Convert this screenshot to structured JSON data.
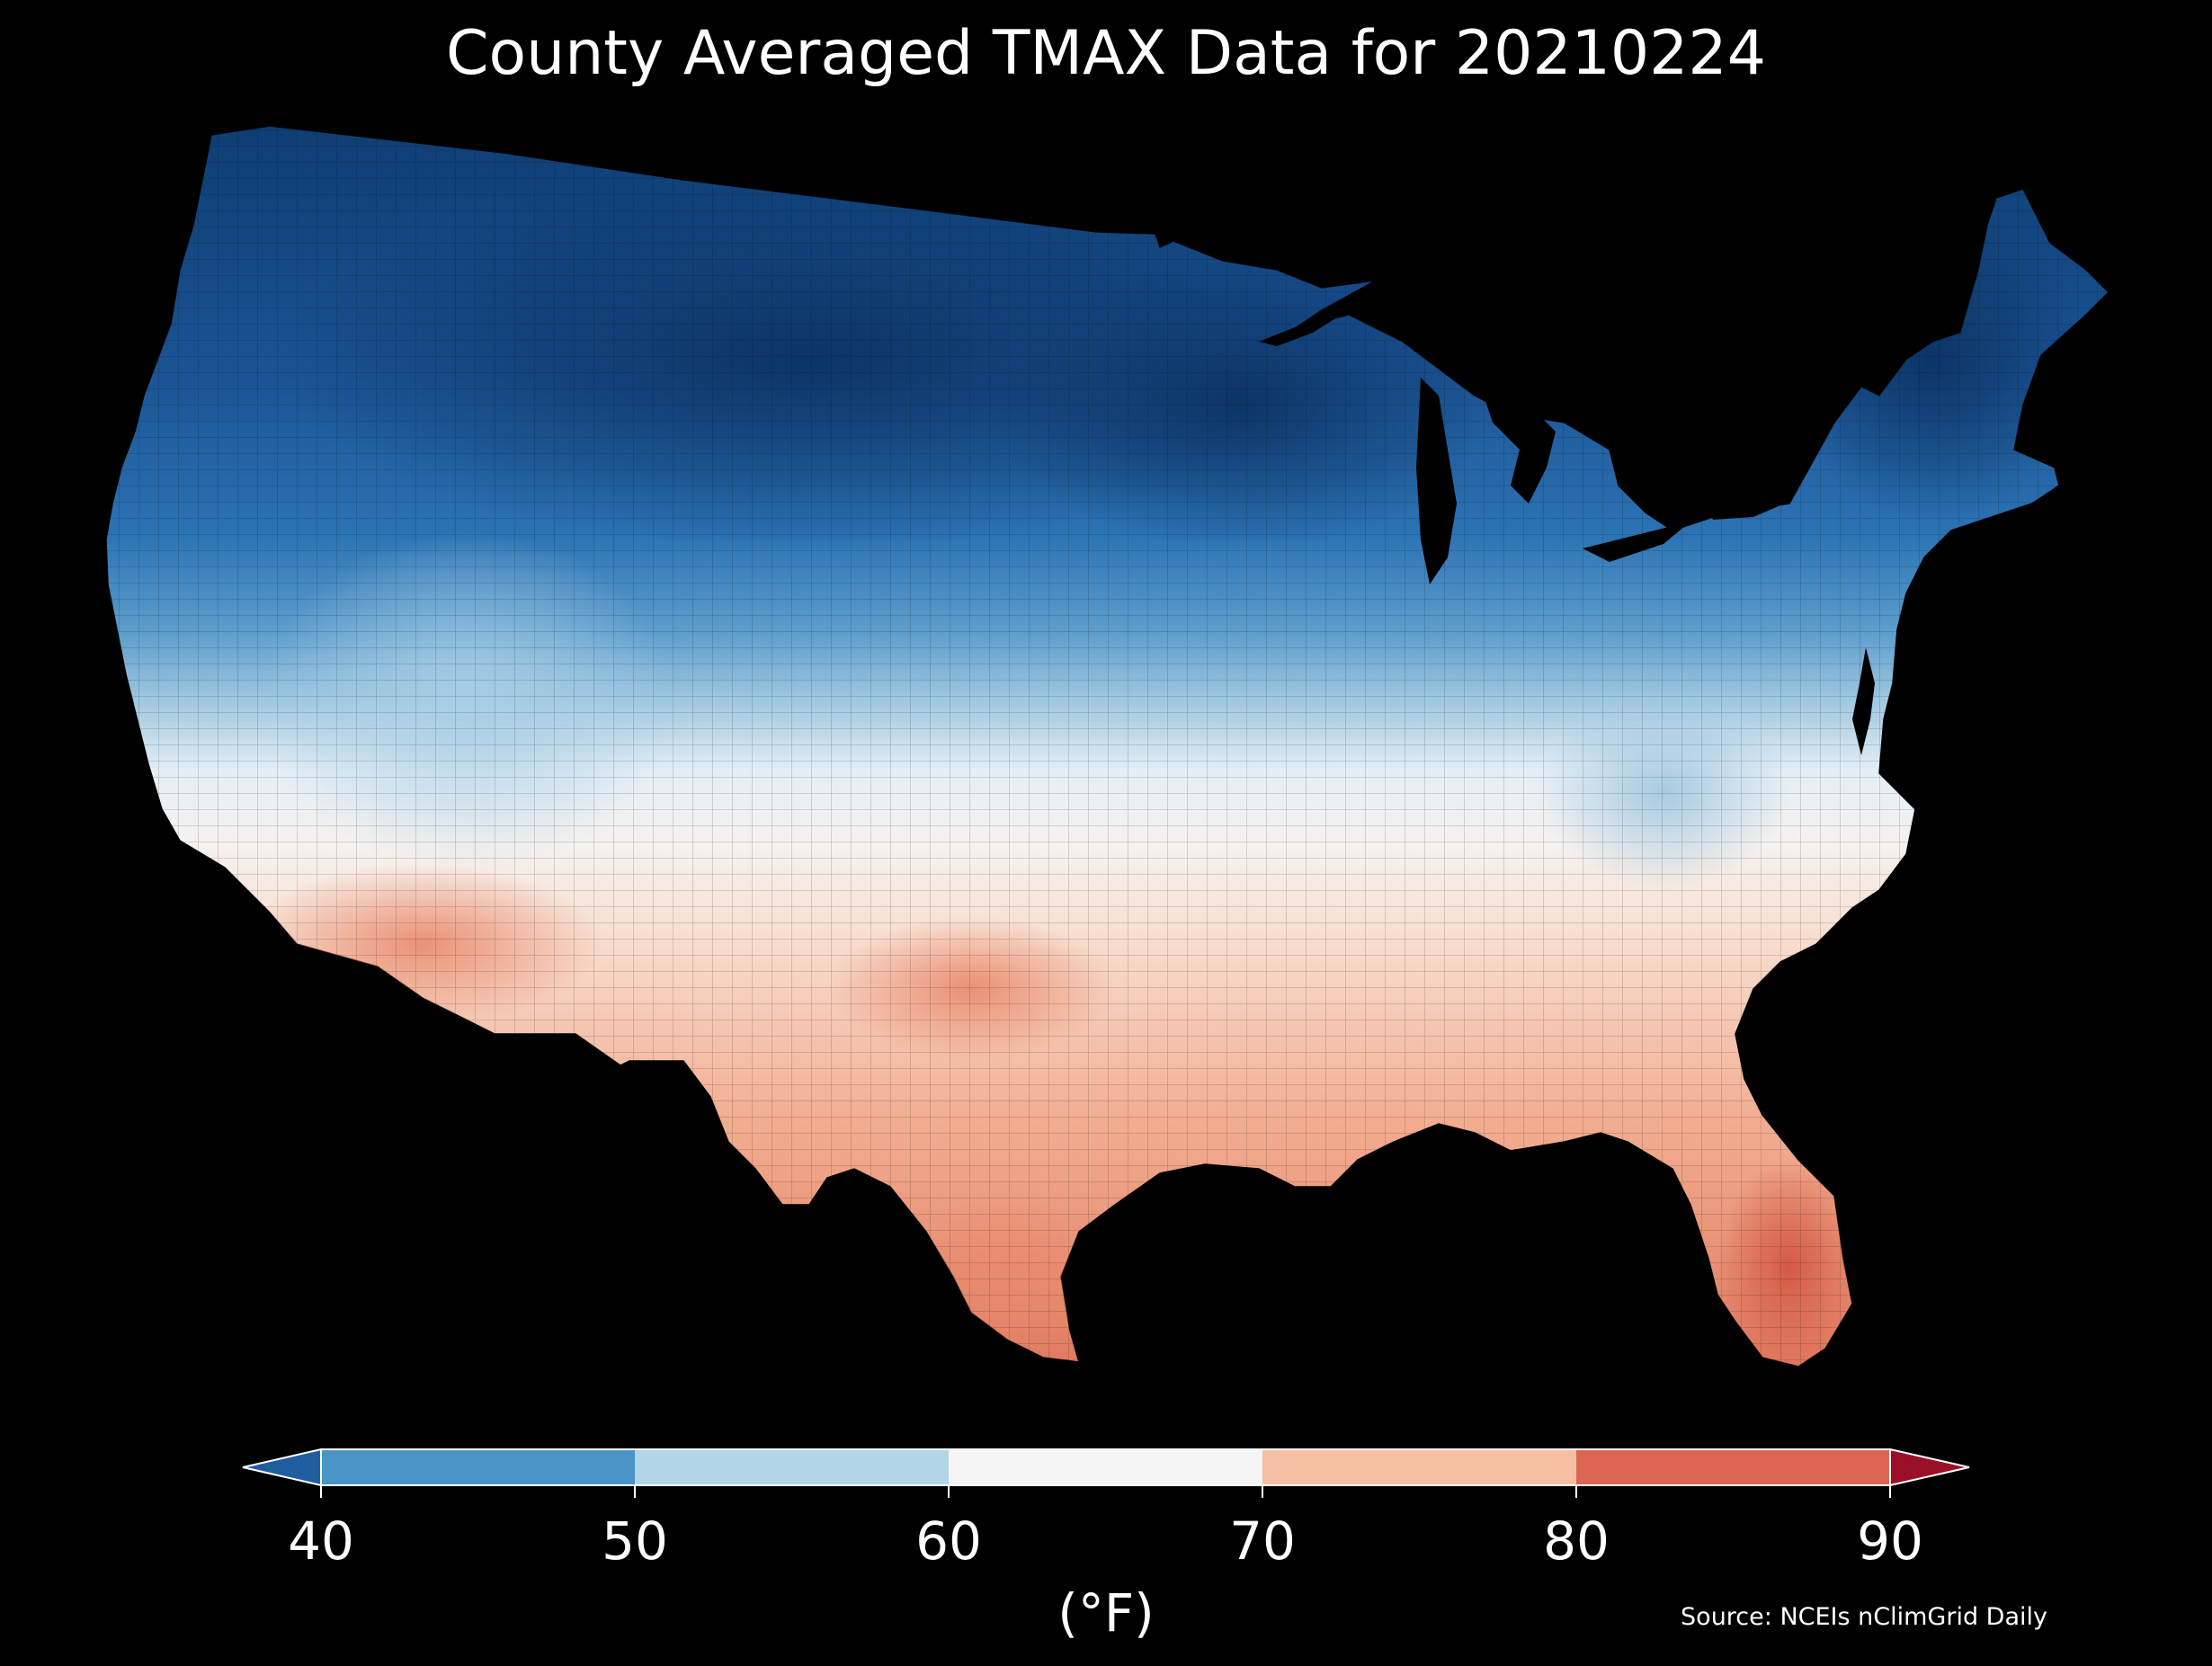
{
  "title": "County Averaged TMAX Data for 20210224",
  "map": {
    "region": "Contiguous United States",
    "units": "°F",
    "variable": "TMAX",
    "date": "20210224",
    "background_color": "#000000",
    "regional_values": [
      {
        "region": "Northern Plains / Montana / North Dakota",
        "range": "<40"
      },
      {
        "region": "Upper Midwest / Minnesota / Wisconsin / Michigan",
        "range": "<40 to 40-50"
      },
      {
        "region": "New England / New York",
        "range": "<40 to 40-50"
      },
      {
        "region": "Pacific Northwest",
        "range": "40-50"
      },
      {
        "region": "Great Basin / Nevada / Utah",
        "range": "40-60"
      },
      {
        "region": "Central Plains / Kansas / Missouri",
        "range": "60-70"
      },
      {
        "region": "Mid-Atlantic / Ohio Valley",
        "range": "50-70"
      },
      {
        "region": "Southeast / Gulf Coast",
        "range": "60-80"
      },
      {
        "region": "Texas / Oklahoma",
        "range": "60-80"
      },
      {
        "region": "Southern California / Arizona",
        "range": "70-80"
      },
      {
        "region": "South Florida",
        "range": "80-90"
      }
    ]
  },
  "colorbar": {
    "label": "(°F)",
    "ticks": [
      "40",
      "50",
      "60",
      "70",
      "80",
      "90"
    ],
    "bins": [
      {
        "range": "<40",
        "color": "#1f5d9e"
      },
      {
        "range": "40-50",
        "color": "#4a95c5"
      },
      {
        "range": "50-60",
        "color": "#b3d5e8"
      },
      {
        "range": "60-70",
        "color": "#f5f5f5"
      },
      {
        "range": "70-80",
        "color": "#f6bfa5"
      },
      {
        "range": "80-90",
        "color": "#db6752"
      },
      {
        "range": ">90",
        "color": "#9b1027"
      }
    ]
  },
  "source": "Source: NCEIs nClimGrid Daily"
}
